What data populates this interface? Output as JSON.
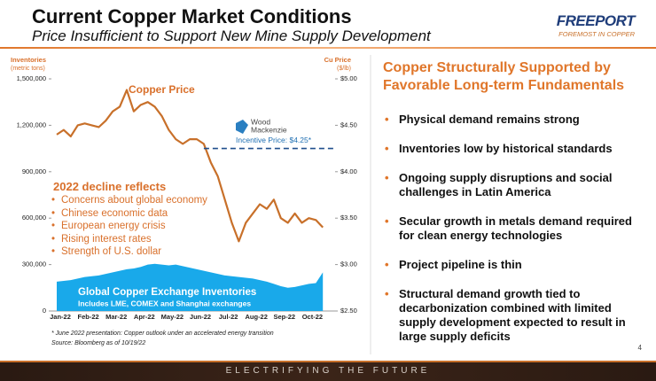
{
  "header": {
    "title": "Current Copper Market Conditions",
    "subtitle": "Price Insufficient to Support New Mine Supply Development",
    "logo": "FREEPORT",
    "logo_tagline": "FOREMOST IN COPPER"
  },
  "chart_data": {
    "type": "line-area",
    "ylabel": [
      "Inventories",
      "(metric tons)"
    ],
    "y2label": [
      "Cu Price",
      "($/lb)"
    ],
    "categories": [
      "Jan-22",
      null,
      null,
      null,
      "Feb-22",
      null,
      null,
      null,
      "Mar-22",
      null,
      null,
      null,
      "Apr-22",
      null,
      null,
      null,
      "May-22",
      null,
      null,
      null,
      "Jun-22",
      null,
      null,
      null,
      "Jul-22",
      null,
      null,
      null,
      "Aug-22",
      null,
      null,
      null,
      "Sep-22",
      null,
      null,
      null,
      "Oct-22",
      null,
      null
    ],
    "series": [
      {
        "name": "Copper Price",
        "color": "#c8702a",
        "axis": "y2",
        "values": [
          4.4,
          4.45,
          4.38,
          4.5,
          4.52,
          4.5,
          4.48,
          4.55,
          4.65,
          4.7,
          4.88,
          4.65,
          4.72,
          4.75,
          4.7,
          4.6,
          4.45,
          4.35,
          4.3,
          4.35,
          4.35,
          4.3,
          4.1,
          3.95,
          3.7,
          3.45,
          3.25,
          3.45,
          3.55,
          3.65,
          3.6,
          3.7,
          3.5,
          3.45,
          3.55,
          3.45,
          3.5,
          3.48,
          3.4
        ]
      },
      {
        "name": "Global Copper Exchange Inventories",
        "color": "#19a9ea",
        "axis": "y",
        "values": [
          190000,
          195000,
          200000,
          210000,
          220000,
          225000,
          230000,
          240000,
          250000,
          260000,
          270000,
          275000,
          285000,
          300000,
          305000,
          300000,
          295000,
          300000,
          290000,
          280000,
          270000,
          260000,
          250000,
          240000,
          230000,
          225000,
          220000,
          215000,
          210000,
          200000,
          190000,
          175000,
          160000,
          150000,
          155000,
          165000,
          175000,
          180000,
          250000
        ]
      }
    ],
    "ylim": [
      0,
      1500000
    ],
    "yticks": [
      0,
      {
        "value": 300000,
        "label": "300,000"
      },
      {
        "value": 600000,
        "label": "600,000"
      },
      {
        "value": 900000,
        "label": "900,000"
      },
      {
        "value": 1200000,
        "label": "1,200,000"
      },
      {
        "value": 1500000,
        "label": "1,500,000"
      }
    ],
    "y2lim": [
      2.5,
      5
    ],
    "y2ticks": [
      {
        "value": 2.5,
        "label": "$2.50"
      },
      {
        "value": 3,
        "label": "$3.00"
      },
      {
        "value": 3.5,
        "label": "$3.50"
      },
      {
        "value": 4,
        "label": "$4.00"
      },
      {
        "value": 4.5,
        "label": "$4.50"
      },
      {
        "value": 5,
        "label": "$5.00"
      }
    ],
    "grid": false,
    "reference": {
      "value": 4.25,
      "label": "Incentive Price: $4.25*",
      "source": [
        "Wood",
        "Mackenzie"
      ]
    },
    "inventory_note": "Includes LME, COMEX and Shanghai exchanges",
    "decline_title": "2022 decline reflects",
    "decline_items": [
      "Concerns about global economy",
      "Chinese economic data",
      "European energy crisis",
      "Rising interest rates",
      "Strength of U.S. dollar"
    ],
    "footnotes": [
      "* June 2022 presentation: Copper outlook under an accelerated energy transition",
      "Source: Bloomberg as of 10/19/22"
    ]
  },
  "panel": {
    "title": "Copper Structurally Supported by Favorable Long-term Fundamentals",
    "items": [
      "Physical demand remains strong",
      "Inventories low by historical standards",
      "Ongoing supply disruptions and social challenges in Latin America",
      "Secular growth in metals demand required for clean energy technologies",
      "Project pipeline is thin",
      "Structural demand growth tied to decarbonization combined with limited supply development expected to result in large supply deficits"
    ]
  },
  "footer": {
    "tagline": "ELECTRIFYING THE FUTURE",
    "page": "4"
  }
}
